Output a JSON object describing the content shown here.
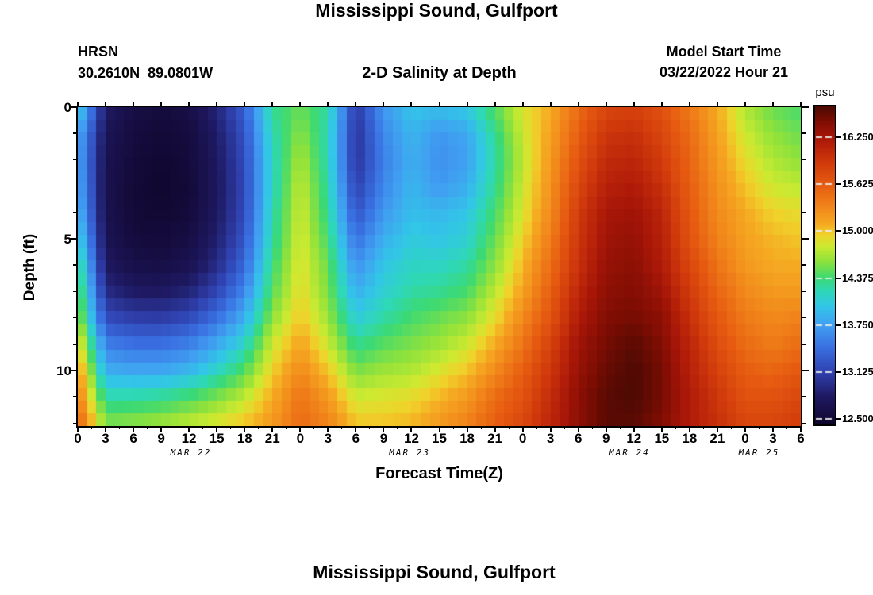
{
  "header": {
    "title": "Mississippi Sound, Gulfport",
    "station_id": "HRSN",
    "coordinates": "30.2610N  89.0801W",
    "subtitle": "2-D Salinity at Depth",
    "model_start_label": "Model Start Time",
    "model_start_value": "03/22/2022 Hour 21"
  },
  "footer": {
    "next_title": "Mississippi Sound, Gulfport"
  },
  "chart_data": {
    "type": "heatmap",
    "title": "Mississippi Sound, Gulfport",
    "subtitle": "2-D Salinity at Depth",
    "xlabel": "Forecast Time(Z)",
    "ylabel": "Depth (ft)",
    "units": "psu",
    "x_range_hours": [
      0,
      78
    ],
    "x_tick_hours": [
      0,
      3,
      6,
      9,
      12,
      15,
      18,
      21,
      24,
      27,
      30,
      33,
      36,
      39,
      42,
      45,
      48,
      51,
      54,
      57,
      60,
      63,
      66,
      69,
      72,
      75,
      78
    ],
    "x_tick_labels": [
      "0",
      "3",
      "6",
      "9",
      "12",
      "15",
      "18",
      "21",
      "0",
      "3",
      "6",
      "9",
      "12",
      "15",
      "18",
      "21",
      "0",
      "3",
      "6",
      "9",
      "12",
      "15",
      "18",
      "21",
      "0",
      "3",
      "6"
    ],
    "x_minor_step_hours": 1.5,
    "y_range_ft": [
      0,
      12.1
    ],
    "y_major_ticks": [
      0,
      5,
      10
    ],
    "y_minor_step_ft": 1,
    "date_labels": [
      {
        "text": "MAR 22",
        "hour": 12.2
      },
      {
        "text": "MAR 23",
        "hour": 35.8
      },
      {
        "text": "MAR 24",
        "hour": 59.5
      },
      {
        "text": "MAR 25",
        "hour": 73.5
      }
    ],
    "colorbar": {
      "label": "psu",
      "vmin": 12.43,
      "vmax": 16.66,
      "tick_values": [
        16.25,
        15.625,
        15.0,
        14.375,
        13.75,
        13.125,
        12.5
      ],
      "tick_labels": [
        "16.250",
        "15.625",
        "15.000",
        "14.375",
        "13.750",
        "13.125",
        "12.500"
      ]
    },
    "colormap_stops": [
      [
        12.43,
        "#0c0527"
      ],
      [
        12.5,
        "#140a38"
      ],
      [
        12.8,
        "#1f1a63"
      ],
      [
        13.125,
        "#3042b0"
      ],
      [
        13.45,
        "#3a70e2"
      ],
      [
        13.75,
        "#41a0f2"
      ],
      [
        14.0,
        "#33c6e8"
      ],
      [
        14.2,
        "#2fd8b8"
      ],
      [
        14.375,
        "#3cda74"
      ],
      [
        14.6,
        "#8fe23c"
      ],
      [
        14.8,
        "#cdea31"
      ],
      [
        14.95,
        "#f0d32b"
      ],
      [
        15.1,
        "#f6a922"
      ],
      [
        15.35,
        "#f1821a"
      ],
      [
        15.625,
        "#e65b11"
      ],
      [
        15.9,
        "#d23c0c"
      ],
      [
        16.1,
        "#bc260a"
      ],
      [
        16.25,
        "#a81708"
      ],
      [
        16.45,
        "#830e04"
      ],
      [
        16.66,
        "#4a0a03"
      ]
    ],
    "grid_hours": [
      0,
      3,
      6,
      9,
      12,
      15,
      18,
      21,
      24,
      27,
      30,
      33,
      36,
      39,
      42,
      45,
      48,
      51,
      54,
      57,
      60,
      63,
      66,
      69,
      72,
      75,
      78
    ],
    "grid_depths_ft": [
      0,
      1,
      2,
      3,
      4,
      5,
      6,
      7,
      8,
      9,
      10,
      11,
      12
    ],
    "salinity_psu": [
      [
        14.15,
        13.85,
        13.8,
        13.85,
        13.95,
        14.15,
        14.4,
        14.55,
        14.7,
        15.0,
        15.25,
        15.4,
        15.6
      ],
      [
        12.8,
        12.72,
        12.68,
        12.66,
        12.66,
        12.7,
        12.78,
        12.95,
        13.2,
        13.55,
        13.85,
        14.25,
        14.55
      ],
      [
        12.6,
        12.55,
        12.52,
        12.5,
        12.5,
        12.55,
        12.62,
        12.8,
        13.1,
        13.45,
        13.8,
        14.25,
        14.6
      ],
      [
        12.55,
        12.5,
        12.48,
        12.47,
        12.48,
        12.52,
        12.6,
        12.78,
        13.08,
        13.45,
        13.8,
        14.3,
        14.65
      ],
      [
        12.6,
        12.55,
        12.52,
        12.5,
        12.52,
        12.58,
        12.68,
        12.88,
        13.18,
        13.55,
        13.9,
        14.4,
        14.75
      ],
      [
        12.9,
        12.82,
        12.78,
        12.76,
        12.78,
        12.85,
        12.95,
        13.15,
        13.45,
        13.8,
        14.15,
        14.55,
        14.85
      ],
      [
        13.35,
        13.25,
        13.2,
        13.18,
        13.2,
        13.28,
        13.4,
        13.6,
        13.85,
        14.15,
        14.45,
        14.75,
        15.0
      ],
      [
        14.3,
        14.2,
        14.15,
        14.15,
        14.2,
        14.25,
        14.35,
        14.45,
        14.6,
        14.8,
        14.95,
        15.1,
        15.2
      ],
      [
        14.5,
        14.6,
        14.7,
        14.78,
        14.82,
        14.85,
        14.88,
        14.92,
        15.0,
        15.15,
        15.3,
        15.45,
        15.5
      ],
      [
        14.25,
        14.2,
        14.2,
        14.25,
        14.3,
        14.4,
        14.5,
        14.55,
        14.65,
        14.8,
        15.0,
        15.2,
        15.35
      ],
      [
        13.05,
        13.0,
        13.0,
        13.1,
        13.25,
        13.45,
        13.65,
        13.85,
        14.05,
        14.3,
        14.55,
        14.8,
        15.0
      ],
      [
        13.7,
        13.6,
        13.55,
        13.6,
        13.7,
        13.85,
        14.0,
        14.1,
        14.25,
        14.45,
        14.65,
        14.85,
        15.0
      ],
      [
        14.0,
        13.9,
        13.85,
        13.9,
        13.95,
        14.05,
        14.15,
        14.25,
        14.4,
        14.55,
        14.7,
        14.9,
        15.05
      ],
      [
        13.95,
        13.7,
        13.65,
        13.7,
        13.9,
        14.0,
        14.15,
        14.3,
        14.5,
        14.65,
        14.85,
        15.05,
        15.2
      ],
      [
        14.05,
        13.8,
        13.75,
        13.85,
        14.0,
        14.1,
        14.25,
        14.4,
        14.6,
        14.8,
        15.0,
        15.2,
        15.35
      ],
      [
        14.45,
        14.3,
        14.25,
        14.3,
        14.4,
        14.5,
        14.6,
        14.75,
        14.9,
        15.1,
        15.3,
        15.5,
        15.6
      ],
      [
        14.85,
        14.8,
        14.75,
        14.8,
        14.85,
        14.95,
        15.05,
        15.15,
        15.3,
        15.45,
        15.6,
        15.7,
        15.8
      ],
      [
        15.1,
        15.15,
        15.2,
        15.25,
        15.3,
        15.4,
        15.5,
        15.6,
        15.7,
        15.85,
        15.95,
        16.05,
        16.1
      ],
      [
        15.5,
        15.6,
        15.7,
        15.8,
        15.9,
        15.95,
        16.0,
        16.1,
        16.2,
        16.3,
        16.35,
        16.4,
        16.4
      ],
      [
        15.8,
        15.95,
        16.05,
        16.15,
        16.25,
        16.3,
        16.35,
        16.4,
        16.45,
        16.5,
        16.55,
        16.6,
        16.6
      ],
      [
        15.85,
        16.0,
        16.1,
        16.2,
        16.3,
        16.35,
        16.4,
        16.45,
        16.5,
        16.6,
        16.65,
        16.65,
        16.6
      ],
      [
        15.7,
        15.8,
        15.9,
        16.0,
        16.1,
        16.15,
        16.2,
        16.3,
        16.4,
        16.45,
        16.5,
        16.5,
        16.45
      ],
      [
        15.4,
        15.5,
        15.55,
        15.6,
        15.65,
        15.7,
        15.8,
        15.9,
        16.0,
        16.1,
        16.15,
        16.2,
        16.2
      ],
      [
        15.1,
        15.15,
        15.2,
        15.25,
        15.3,
        15.35,
        15.45,
        15.55,
        15.65,
        15.75,
        15.85,
        15.95,
        16.0
      ],
      [
        14.7,
        14.8,
        14.9,
        15.0,
        15.1,
        15.15,
        15.2,
        15.3,
        15.4,
        15.5,
        15.6,
        15.7,
        15.8
      ],
      [
        14.5,
        14.6,
        14.7,
        14.8,
        14.95,
        15.05,
        15.1,
        15.2,
        15.3,
        15.4,
        15.55,
        15.7,
        15.8
      ],
      [
        14.4,
        14.5,
        14.6,
        14.75,
        14.9,
        15.0,
        15.1,
        15.2,
        15.35,
        15.5,
        15.65,
        15.8,
        15.9
      ]
    ]
  }
}
